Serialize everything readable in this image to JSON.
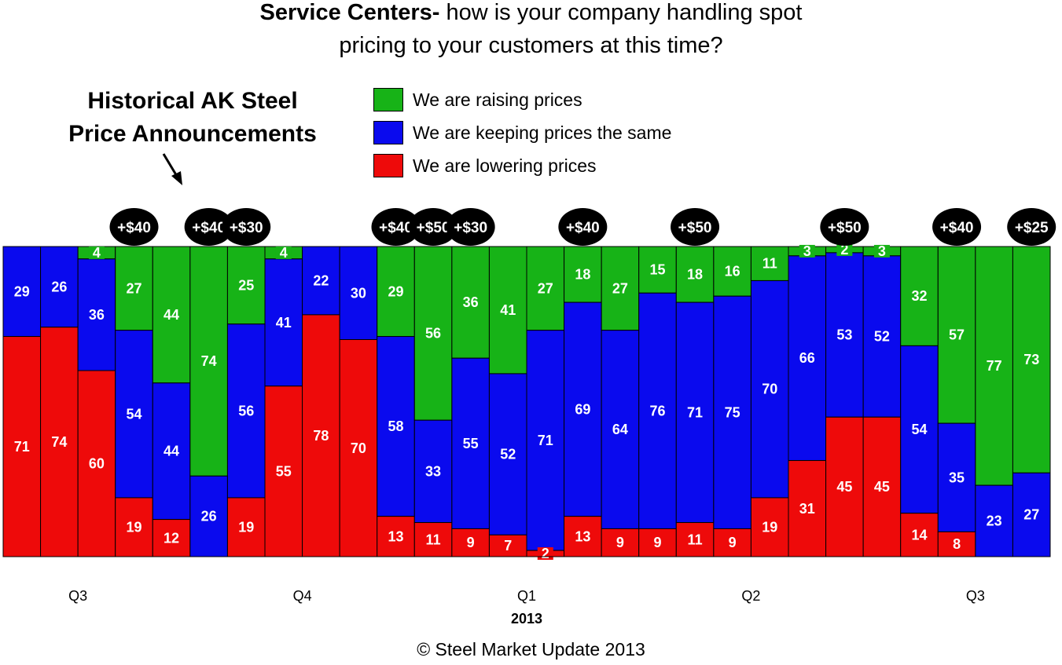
{
  "title": {
    "bold": "Service Centers-",
    "rest": " how is your company handling spot",
    "line2": "pricing to your customers at this time?"
  },
  "annotation": {
    "line1": "Historical AK Steel",
    "line2": "Price Announcements",
    "arrow": "arrow-down-icon"
  },
  "copyright": "© Steel Market Update 2013",
  "colors": {
    "raising": "#17b317",
    "same": "#0a0aee",
    "lowering": "#ee0a0a"
  },
  "chart_data": {
    "type": "bar",
    "stacked": true,
    "normalized_to": 100,
    "series": [
      {
        "name": "We are raising prices",
        "values": [
          0,
          0,
          4,
          27,
          44,
          74,
          25,
          4,
          0,
          0,
          29,
          56,
          36,
          41,
          27,
          18,
          27,
          15,
          18,
          16,
          11,
          3,
          2,
          3,
          32,
          57,
          77,
          73
        ]
      },
      {
        "name": "We are keeping prices the same",
        "values": [
          29,
          26,
          36,
          54,
          44,
          26,
          56,
          41,
          22,
          30,
          58,
          33,
          55,
          52,
          71,
          69,
          64,
          76,
          71,
          75,
          70,
          66,
          53,
          52,
          54,
          35,
          23,
          27
        ]
      },
      {
        "name": "We are lowering prices",
        "values": [
          71,
          74,
          60,
          19,
          12,
          0,
          19,
          55,
          78,
          70,
          13,
          11,
          9,
          7,
          2,
          13,
          9,
          9,
          11,
          9,
          19,
          31,
          45,
          45,
          14,
          8,
          0,
          0
        ]
      }
    ],
    "price_announcements": [
      {
        "bar": 3,
        "label": "+$40"
      },
      {
        "bar": 5,
        "label": "+$40"
      },
      {
        "bar": 6,
        "label": "+$30"
      },
      {
        "bar": 10,
        "label": "+$40"
      },
      {
        "bar": 11,
        "label": "+$50"
      },
      {
        "bar": 12,
        "label": "+$30"
      },
      {
        "bar": 15,
        "label": "+$40"
      },
      {
        "bar": 18,
        "label": "+$50"
      },
      {
        "bar": 22,
        "label": "+$50"
      },
      {
        "bar": 25,
        "label": "+$40"
      },
      {
        "bar": 27,
        "label": "+$25"
      }
    ],
    "quarter_labels": [
      {
        "bar": 2,
        "label": "Q3"
      },
      {
        "bar": 8,
        "label": "Q4"
      },
      {
        "bar": 14,
        "label": "Q1"
      },
      {
        "bar": 20,
        "label": "Q2"
      },
      {
        "bar": 26,
        "label": "Q3"
      }
    ],
    "year_label": {
      "bar": 14,
      "label": "2013"
    },
    "legend_position": "top",
    "ylim": [
      0,
      100
    ],
    "grid": false
  }
}
